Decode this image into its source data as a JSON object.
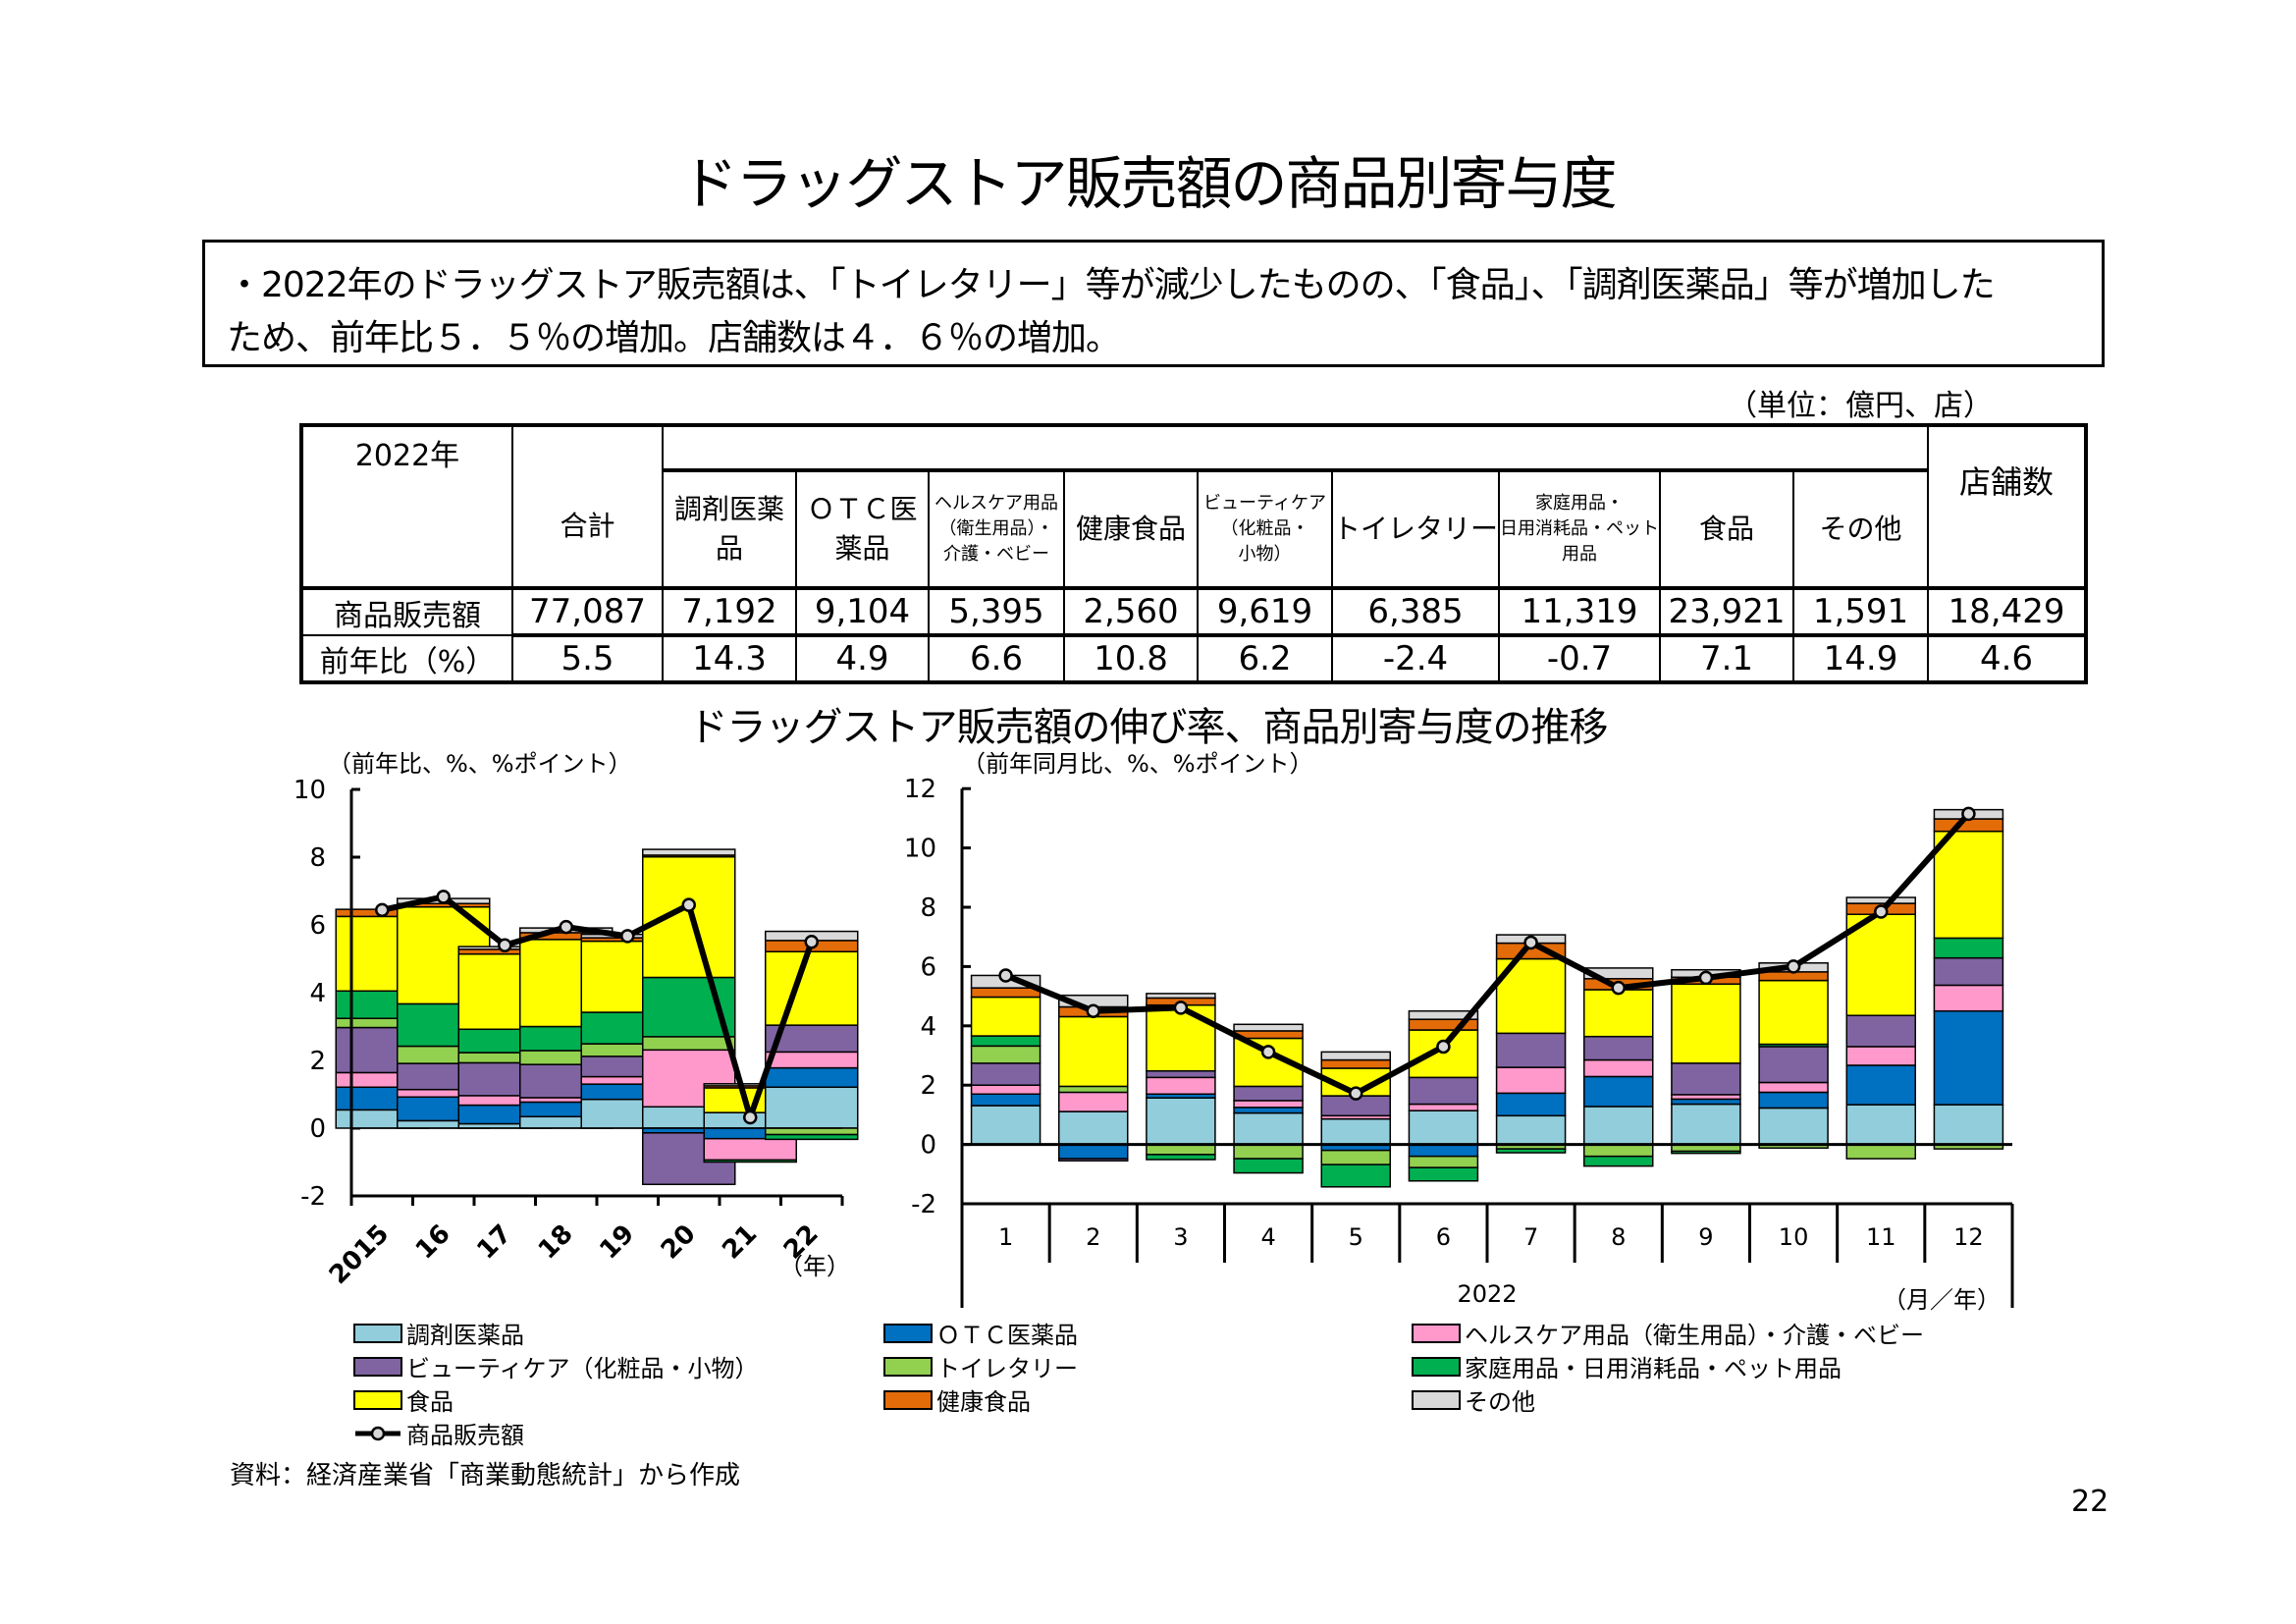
{
  "page": {
    "title": "ドラッグストア販売額の商品別寄与度",
    "summary_lines": [
      "・2022年のドラッグストア販売額は、「トイレタリー」等が減少したものの、「食品」、「調剤医薬品」等が増加した",
      "ため、前年比５．５％の増加。店舗数は４．６％の増加。"
    ],
    "unit_note": "（単位：億円、店）",
    "chart_section_title": "ドラッグストア販売額の伸び率、商品別寄与度の推移",
    "source_note": "資料：経済産業省「商業動態統計」から作成",
    "page_number": "22"
  },
  "table": {
    "year_label": "2022年",
    "columns": [
      {
        "label_lines": [
          "合計"
        ],
        "small": false
      },
      {
        "label_lines": [
          "調剤医薬",
          "品"
        ],
        "small": false
      },
      {
        "label_lines": [
          "ＯＴＣ医",
          "薬品"
        ],
        "small": false
      },
      {
        "label_lines": [
          "ヘルスケア用品",
          "（衛生用品）・",
          "介護・ベビー"
        ],
        "small": true
      },
      {
        "label_lines": [
          "健康食品"
        ],
        "small": false
      },
      {
        "label_lines": [
          "ビューティケア",
          "（化粧品・",
          "小物）"
        ],
        "small": true
      },
      {
        "label_lines": [
          "トイレタリー"
        ],
        "small": false
      },
      {
        "label_lines": [
          "家庭用品・",
          "日用消耗品・ペット",
          "用品"
        ],
        "small": true
      },
      {
        "label_lines": [
          "食品"
        ],
        "small": false
      },
      {
        "label_lines": [
          "その他"
        ],
        "small": false
      },
      {
        "label_lines": [
          "店舗数"
        ],
        "small": false
      }
    ],
    "rows": [
      {
        "label": "商品販売額",
        "values": [
          "77,087",
          "7,192",
          "9,104",
          "5,395",
          "2,560",
          "9,619",
          "6,385",
          "11,319",
          "23,921",
          "1,591",
          "18,429"
        ]
      },
      {
        "label": "前年比（%）",
        "values": [
          "5.5",
          "14.3",
          "4.9",
          "6.6",
          "10.8",
          "6.2",
          "-2.4",
          "-0.7",
          "7.1",
          "14.9",
          "4.6"
        ]
      }
    ]
  },
  "legend": [
    {
      "key": "chozai",
      "label": "調剤医薬品",
      "color": "#92CDDC"
    },
    {
      "key": "otc",
      "label": "ＯＴＣ医薬品",
      "color": "#0070C0"
    },
    {
      "key": "health",
      "label": "ヘルスケア用品（衛生用品）・介護・ベビー",
      "color": "#FF99CC"
    },
    {
      "key": "beauty",
      "label": "ビューティケア（化粧品・小物）",
      "color": "#8064A2"
    },
    {
      "key": "toiletry",
      "label": "トイレタリー",
      "color": "#92D050"
    },
    {
      "key": "household",
      "label": "家庭用品・日用消耗品・ペット用品",
      "color": "#00B050"
    },
    {
      "key": "food",
      "label": "食品",
      "color": "#FFFF00"
    },
    {
      "key": "healthfood",
      "label": "健康食品",
      "color": "#E36C09"
    },
    {
      "key": "other",
      "label": "その他",
      "color": "#D9D9D9"
    },
    {
      "key": "total",
      "label": "商品販売額",
      "line": true
    }
  ],
  "chart_data": [
    {
      "type": "bar",
      "stacked": true,
      "title": "",
      "unit_label": "（前年比、%、%ポイント）",
      "xlabel": "（年）",
      "ylabel": "",
      "ylim": [
        -2,
        10
      ],
      "yticks": [
        -2,
        0,
        2,
        4,
        6,
        8,
        10
      ],
      "categories": [
        "2015",
        "16",
        "17",
        "18",
        "19",
        "20",
        "21",
        "22"
      ],
      "series": [
        {
          "key": "chozai",
          "name": "調剤医薬品",
          "values": [
            0.54,
            0.22,
            0.13,
            0.34,
            0.85,
            0.63,
            0.46,
            1.21
          ]
        },
        {
          "key": "otc",
          "name": "ＯＴＣ医薬品",
          "values": [
            0.67,
            0.7,
            0.55,
            0.43,
            0.45,
            -0.14,
            -0.31,
            0.57
          ]
        },
        {
          "key": "health",
          "name": "ヘルスケア用品（衛生用品）・介護・ベビー",
          "values": [
            0.43,
            0.22,
            0.28,
            0.13,
            0.22,
            1.68,
            -0.63,
            0.47
          ]
        },
        {
          "key": "beauty",
          "name": "ビューティケア（化粧品・小物）",
          "values": [
            1.33,
            0.77,
            0.97,
            0.98,
            0.6,
            -1.52,
            0.0,
            0.79
          ]
        },
        {
          "key": "toiletry",
          "name": "トイレタリー",
          "values": [
            0.27,
            0.51,
            0.3,
            0.41,
            0.37,
            0.39,
            0.0,
            -0.19
          ]
        },
        {
          "key": "household",
          "name": "家庭用品・日用消耗品・ペット用品",
          "values": [
            0.81,
            1.25,
            0.69,
            0.71,
            0.93,
            1.75,
            -0.06,
            -0.14
          ]
        },
        {
          "key": "food",
          "name": "食品",
          "values": [
            2.2,
            2.86,
            2.22,
            2.57,
            2.1,
            3.56,
            0.73,
            2.17
          ]
        },
        {
          "key": "healthfood",
          "name": "健康食品",
          "values": [
            0.21,
            0.1,
            0.14,
            0.2,
            0.1,
            0.05,
            0.06,
            0.33
          ]
        },
        {
          "key": "other",
          "name": "その他",
          "values": [
            0.0,
            0.15,
            0.08,
            0.14,
            0.1,
            0.17,
            0.06,
            0.27
          ]
        }
      ],
      "line": {
        "key": "total",
        "name": "商品販売額",
        "values": [
          6.44,
          6.83,
          5.4,
          5.94,
          5.67,
          6.59,
          0.32,
          5.5
        ]
      },
      "grid": false,
      "legend_position": "bottom"
    },
    {
      "type": "bar",
      "stacked": true,
      "title": "",
      "unit_label": "（前年同月比、%、%ポイント）",
      "xlabel": "（月／年）",
      "year_label": "2022",
      "ylim": [
        -2,
        12
      ],
      "yticks": [
        -2,
        0,
        2,
        4,
        6,
        8,
        10,
        12
      ],
      "categories": [
        "1",
        "2",
        "3",
        "4",
        "5",
        "6",
        "7",
        "8",
        "9",
        "10",
        "11",
        "12"
      ],
      "series": [
        {
          "key": "chozai",
          "name": "調剤医薬品",
          "values": [
            1.31,
            1.11,
            1.57,
            1.06,
            0.86,
            1.14,
            0.97,
            1.28,
            1.36,
            1.23,
            1.34,
            1.34
          ]
        },
        {
          "key": "otc",
          "name": "ＯＴＣ医薬品",
          "values": [
            0.39,
            -0.48,
            0.13,
            0.19,
            -0.2,
            -0.4,
            0.76,
            1.01,
            0.17,
            0.53,
            1.33,
            3.16
          ]
        },
        {
          "key": "health",
          "name": "ヘルスケア用品（衛生用品）・介護・ベビー",
          "values": [
            0.3,
            0.65,
            0.56,
            0.23,
            0.11,
            0.22,
            0.87,
            0.56,
            0.15,
            0.33,
            0.63,
            0.87
          ]
        },
        {
          "key": "beauty",
          "name": "ビューティケア（化粧品・小物）",
          "values": [
            0.74,
            -0.07,
            0.22,
            0.48,
            0.67,
            0.9,
            1.15,
            0.79,
            1.06,
            1.21,
            1.05,
            0.92
          ]
        },
        {
          "key": "toiletry",
          "name": "トイレタリー",
          "values": [
            0.58,
            0.2,
            -0.34,
            -0.48,
            -0.48,
            -0.38,
            -0.15,
            -0.4,
            -0.23,
            -0.12,
            -0.48,
            -0.15
          ]
        },
        {
          "key": "household",
          "name": "家庭用品・日用消耗品・ペット用品",
          "values": [
            0.34,
            0.0,
            -0.17,
            -0.48,
            -0.75,
            -0.45,
            -0.13,
            -0.33,
            -0.07,
            0.08,
            0.0,
            0.67
          ]
        },
        {
          "key": "food",
          "name": "食品",
          "values": [
            1.31,
            2.35,
            2.22,
            1.62,
            0.93,
            1.6,
            2.51,
            1.58,
            2.67,
            2.15,
            3.41,
            3.6
          ]
        },
        {
          "key": "healthfood",
          "name": "健康食品",
          "values": [
            0.31,
            0.33,
            0.24,
            0.25,
            0.28,
            0.36,
            0.53,
            0.37,
            0.23,
            0.29,
            0.37,
            0.42
          ]
        },
        {
          "key": "other",
          "name": "その他",
          "values": [
            0.42,
            0.39,
            0.15,
            0.22,
            0.27,
            0.28,
            0.28,
            0.36,
            0.25,
            0.3,
            0.2,
            0.31
          ]
        }
      ],
      "line": {
        "key": "total",
        "name": "商品販売額",
        "values": [
          5.7,
          4.5,
          4.61,
          3.12,
          1.72,
          3.3,
          6.81,
          5.28,
          5.62,
          6.0,
          7.85,
          11.15
        ]
      },
      "grid": false,
      "legend_position": "bottom"
    }
  ]
}
